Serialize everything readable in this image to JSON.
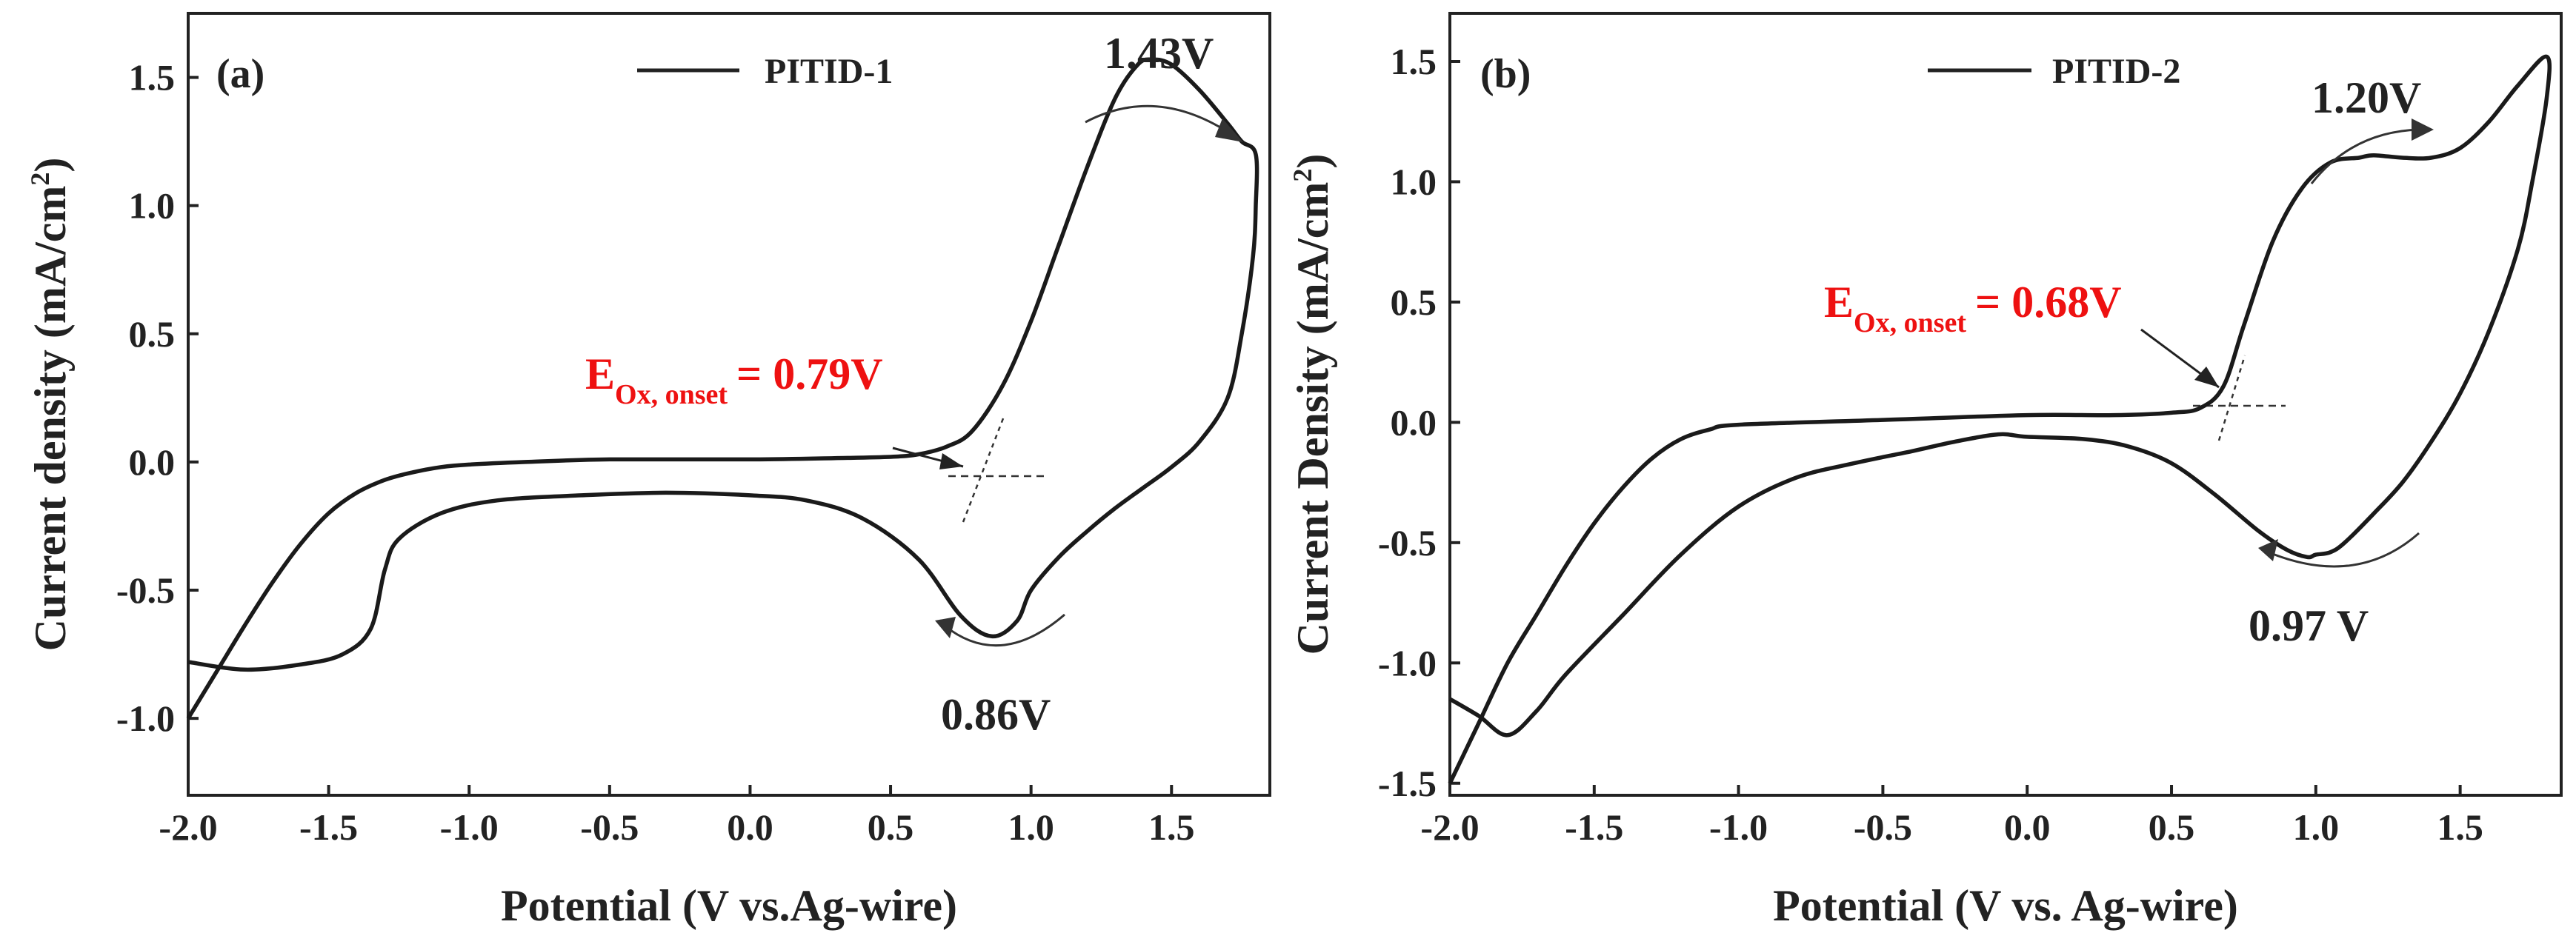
{
  "chart_data": [
    {
      "type": "line",
      "panel_label": "(a)",
      "legend": "PITID-1",
      "xlabel": "Potential (V vs.Ag-wire)",
      "ylabel_parts": [
        "Current density (mA/cm",
        "2",
        ")"
      ],
      "xlim": [
        -2.0,
        1.85
      ],
      "ylim": [
        -1.3,
        1.75
      ],
      "xticks": [
        -2.0,
        -1.5,
        -1.0,
        -0.5,
        0.0,
        0.5,
        1.0,
        1.5
      ],
      "yticks": [
        -1.0,
        -0.5,
        0.0,
        0.5,
        1.0,
        1.5
      ],
      "xtick_labels": [
        "-2.0",
        "-1.5",
        "-1.0",
        "-0.5",
        "0.0",
        "0.5",
        "1.0",
        "1.5"
      ],
      "ytick_labels": [
        "-1.0",
        "-0.5",
        "0.0",
        "0.5",
        "1.0",
        "1.5"
      ],
      "series": [
        {
          "name": "PITID-1",
          "x": [
            -2.0,
            -1.9,
            -1.8,
            -1.7,
            -1.6,
            -1.5,
            -1.4,
            -1.3,
            -1.2,
            -1.1,
            -1.0,
            -0.8,
            -0.5,
            0.0,
            0.3,
            0.5,
            0.6,
            0.7,
            0.79,
            0.9,
            1.0,
            1.1,
            1.2,
            1.3,
            1.38,
            1.43,
            1.5,
            1.6,
            1.7,
            1.75,
            1.8,
            1.8,
            1.79,
            1.75,
            1.7,
            1.6,
            1.5,
            1.4,
            1.3,
            1.2,
            1.1,
            1.0,
            0.95,
            0.86,
            0.75,
            0.6,
            0.4,
            0.2,
            0.0,
            -0.3,
            -0.6,
            -0.9,
            -1.1,
            -1.25,
            -1.3,
            -1.35,
            -1.45,
            -1.6,
            -1.8,
            -2.0
          ],
          "y": [
            -1.0,
            -0.82,
            -0.64,
            -0.47,
            -0.32,
            -0.2,
            -0.12,
            -0.07,
            -0.04,
            -0.02,
            -0.01,
            0.0,
            0.01,
            0.01,
            0.015,
            0.02,
            0.03,
            0.06,
            0.12,
            0.3,
            0.55,
            0.85,
            1.15,
            1.42,
            1.55,
            1.57,
            1.55,
            1.45,
            1.32,
            1.25,
            1.2,
            1.0,
            0.8,
            0.5,
            0.25,
            0.08,
            -0.02,
            -0.1,
            -0.18,
            -0.27,
            -0.37,
            -0.5,
            -0.62,
            -0.68,
            -0.6,
            -0.38,
            -0.22,
            -0.15,
            -0.13,
            -0.12,
            -0.13,
            -0.15,
            -0.2,
            -0.3,
            -0.42,
            -0.65,
            -0.75,
            -0.79,
            -0.81,
            -0.78
          ]
        }
      ],
      "annotations": {
        "peak_ox": "1.43V",
        "peak_red": "0.86V",
        "onset_main": "E",
        "onset_sub": "Ox, onset",
        "onset_value": "= 0.79V",
        "onset_color": "#ee1111"
      }
    },
    {
      "type": "line",
      "panel_label": "(b)",
      "legend": "PITID-2",
      "xlabel": "Potential (V vs. Ag-wire)",
      "ylabel_parts": [
        "Current Density (mA/cm",
        "2",
        ")"
      ],
      "xlim": [
        -2.0,
        1.85
      ],
      "ylim": [
        -1.55,
        1.7
      ],
      "xticks": [
        -2.0,
        -1.5,
        -1.0,
        -0.5,
        0.0,
        0.5,
        1.0,
        1.5
      ],
      "yticks": [
        -1.5,
        -1.0,
        -0.5,
        0.0,
        0.5,
        1.0,
        1.5
      ],
      "xtick_labels": [
        "-2.0",
        "-1.5",
        "-1.0",
        "-0.5",
        "0.0",
        "0.5",
        "1.0",
        "1.5"
      ],
      "ytick_labels": [
        "-1.5",
        "-1.0",
        "-0.5",
        "0.0",
        "0.5",
        "1.0",
        "1.5"
      ],
      "series": [
        {
          "name": "PITID-2",
          "x": [
            -2.0,
            -1.9,
            -1.8,
            -1.7,
            -1.6,
            -1.5,
            -1.4,
            -1.3,
            -1.2,
            -1.1,
            -1.0,
            -0.5,
            0.0,
            0.3,
            0.5,
            0.6,
            0.68,
            0.75,
            0.85,
            0.95,
            1.05,
            1.15,
            1.2,
            1.3,
            1.4,
            1.5,
            1.6,
            1.7,
            1.8,
            1.8,
            1.75,
            1.7,
            1.6,
            1.5,
            1.4,
            1.3,
            1.2,
            1.1,
            1.05,
            1.0,
            0.97,
            0.9,
            0.8,
            0.65,
            0.5,
            0.35,
            0.2,
            0.0,
            -0.1,
            -0.25,
            -0.4,
            -0.6,
            -0.8,
            -1.0,
            -1.2,
            -1.4,
            -1.6,
            -1.7,
            -1.8,
            -1.9,
            -2.0
          ],
          "y": [
            -1.5,
            -1.25,
            -1.0,
            -0.8,
            -0.6,
            -0.42,
            -0.27,
            -0.15,
            -0.07,
            -0.03,
            -0.01,
            0.01,
            0.03,
            0.03,
            0.04,
            0.06,
            0.15,
            0.4,
            0.75,
            0.97,
            1.08,
            1.1,
            1.11,
            1.1,
            1.1,
            1.14,
            1.25,
            1.4,
            1.52,
            1.35,
            1.0,
            0.72,
            0.38,
            0.12,
            -0.08,
            -0.25,
            -0.38,
            -0.5,
            -0.54,
            -0.55,
            -0.56,
            -0.53,
            -0.45,
            -0.3,
            -0.17,
            -0.1,
            -0.07,
            -0.06,
            -0.05,
            -0.08,
            -0.12,
            -0.17,
            -0.23,
            -0.35,
            -0.55,
            -0.8,
            -1.05,
            -1.2,
            -1.3,
            -1.22,
            -1.15
          ]
        }
      ],
      "annotations": {
        "peak_ox": "1.20V",
        "peak_red": "0.97 V",
        "onset_main": "E",
        "onset_sub": "Ox, onset",
        "onset_value": "= 0.68V",
        "onset_color": "#ee1111"
      }
    }
  ]
}
